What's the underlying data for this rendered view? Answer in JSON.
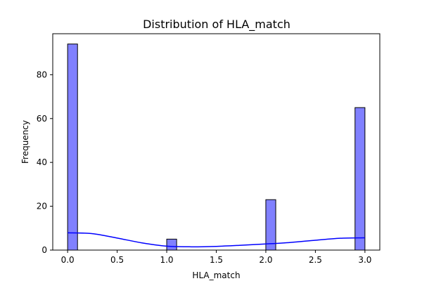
{
  "chart_data": {
    "type": "bar",
    "title": "Distribution of HLA_match",
    "xlabel": "HLA_match",
    "ylabel": "Frequency",
    "xlim": [
      -0.15,
      3.15
    ],
    "ylim": [
      0,
      98.7
    ],
    "xticks": [
      0.0,
      0.5,
      1.0,
      1.5,
      2.0,
      2.5,
      3.0
    ],
    "xtick_labels": [
      "0.0",
      "0.5",
      "1.0",
      "1.5",
      "2.0",
      "2.5",
      "3.0"
    ],
    "yticks": [
      0,
      20,
      40,
      60,
      80
    ],
    "ytick_labels": [
      "0",
      "20",
      "40",
      "60",
      "80"
    ],
    "bins": [
      {
        "x0": 0.0,
        "x1": 0.1,
        "count": 94
      },
      {
        "x0": 1.0,
        "x1": 1.1,
        "count": 5
      },
      {
        "x0": 2.0,
        "x1": 2.1,
        "count": 23
      },
      {
        "x0": 2.9,
        "x1": 3.0,
        "count": 65
      }
    ],
    "kde": {
      "x": [
        0.0,
        0.25,
        0.5,
        0.75,
        1.0,
        1.25,
        1.5,
        1.75,
        2.0,
        2.25,
        2.5,
        2.75,
        3.0
      ],
      "y": [
        7.9,
        7.5,
        5.5,
        3.3,
        1.8,
        1.5,
        1.7,
        2.2,
        2.8,
        3.5,
        4.5,
        5.4,
        5.6
      ]
    },
    "colors": {
      "bar_fill": "#8080ff",
      "bar_edge": "#000000",
      "kde_line": "#0000ff"
    },
    "grid": false,
    "legend": "none"
  }
}
